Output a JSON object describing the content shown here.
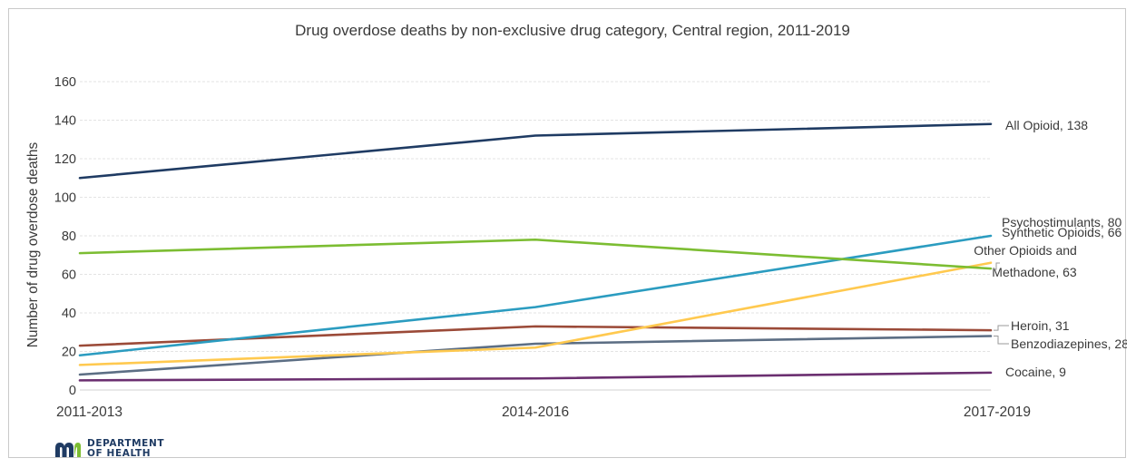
{
  "logo": {
    "line1": "DEPARTMENT",
    "line2": "OF HEALTH",
    "color": "#1f3b63"
  },
  "chart_data": {
    "type": "line",
    "title": "Drug overdose deaths by non-exclusive drug category, Central region, 2011-2019",
    "xlabel": "",
    "ylabel": "Number of drug overdose deaths",
    "categories": [
      "2011-2013",
      "2014-2016",
      "2017-2019"
    ],
    "ylim": [
      0,
      160
    ],
    "yticks": [
      0,
      20,
      40,
      60,
      80,
      100,
      120,
      140,
      160
    ],
    "grid": true,
    "series": [
      {
        "name": "All Opioid",
        "values": [
          110,
          132,
          138
        ],
        "color": "#1f3b63",
        "label": "All Opioid, 138"
      },
      {
        "name": "Psychostimulants",
        "values": [
          18,
          43,
          80
        ],
        "color": "#2b9cc0",
        "label": "Psychostimulants, 80"
      },
      {
        "name": "Synthetic Opioids",
        "values": [
          13,
          22,
          66
        ],
        "color": "#ffc94f",
        "label": "Synthetic Opioids, 66"
      },
      {
        "name": "Other Opioids and Methadone",
        "values": [
          71,
          78,
          63
        ],
        "color": "#7cbd32",
        "label_lines": [
          "Other Opioids and",
          "Methadone, 63"
        ]
      },
      {
        "name": "Heroin",
        "values": [
          23,
          33,
          31
        ],
        "color": "#9b4a38",
        "label": "Heroin, 31"
      },
      {
        "name": "Benzodiazepines",
        "values": [
          8,
          24,
          28
        ],
        "color": "#5c6e84",
        "label": "Benzodiazepines, 28"
      },
      {
        "name": "Cocaine",
        "values": [
          5,
          6,
          9
        ],
        "color": "#6b2f70",
        "label": "Cocaine, 9"
      }
    ]
  }
}
